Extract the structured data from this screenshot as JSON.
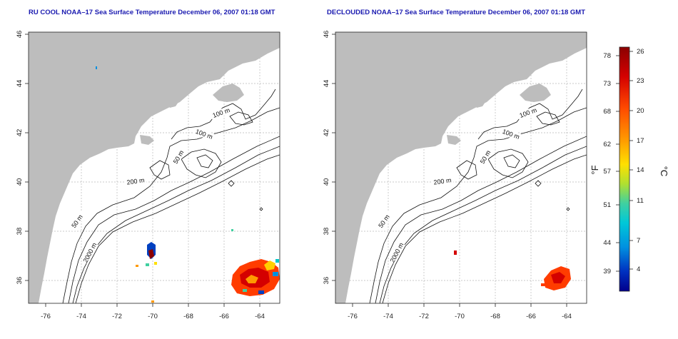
{
  "panels": [
    {
      "title": "RU COOL NOAA–17 Sea Surface Temperature December 06, 2007 01:18 GMT"
    },
    {
      "title": "DECLOUDED NOAA–17 Sea Surface Temperature December 06, 2007 01:18 GMT"
    }
  ],
  "axes": {
    "lon_ticks": [
      "-76",
      "-74",
      "-72",
      "-70",
      "-68",
      "-66",
      "-64"
    ],
    "lat_ticks": [
      "46",
      "44",
      "42",
      "40",
      "38",
      "36"
    ],
    "lon_range": [
      -77.2,
      -63.0
    ],
    "lat_range": [
      35.0,
      46.0
    ]
  },
  "contour_labels": [
    "100 m",
    "100 m",
    "50 m",
    "200 m",
    "50 m",
    "2000 m"
  ],
  "colorbar": {
    "fahrenheit_ticks": [
      "78",
      "73",
      "68",
      "62",
      "57",
      "51",
      "44",
      "39"
    ],
    "celsius_ticks": [
      "26",
      "23",
      "20",
      "17",
      "14",
      "11",
      "7",
      "4"
    ],
    "fahrenheit_label": "°F",
    "celsius_label": "°C",
    "colors": [
      "#8b0000",
      "#d40000",
      "#ff3c00",
      "#ff8c00",
      "#ffd000",
      "#c8e000",
      "#60d080",
      "#00c8c8",
      "#0090e0",
      "#0040c0",
      "#00008b"
    ]
  },
  "colors": {
    "land": "#bdbdbd",
    "ocean": "#ffffff",
    "grid": "#b8b8b8",
    "title": "#1a1ab0"
  }
}
